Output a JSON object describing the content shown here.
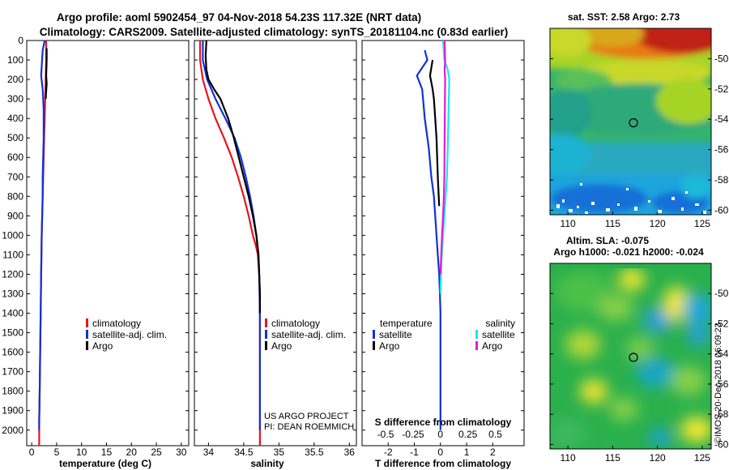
{
  "header": {
    "title_line1": "Argo profile: aoml 5902454_97 04-Nov-2018 54.23S 117.32E (NRT data)",
    "title_line2": "Climatology: CARS2009. Satellite-adjusted climatology: synTS_20181104.nc (0.83d earlier)"
  },
  "credits": {
    "project": "US ARGO PROJECT",
    "pi": "PI: DEAN ROEMMICH",
    "stamp": "©IMOS 20-Dec-2018 06:09:23"
  },
  "colors": {
    "climatology": "#e8141e",
    "satellite": "#1230d8",
    "argo": "#000000",
    "sal_satellite": "#18e8e8",
    "sal_argo": "#e818d8"
  },
  "chart_data": [
    {
      "type": "line",
      "name": "temperature",
      "xlabel": "temperature (deg C)",
      "ylabel": "",
      "xlim": [
        -1,
        31.5
      ],
      "ylim": [
        2080,
        0
      ],
      "xticks": [
        "0",
        "5",
        "10",
        "15",
        "20",
        "25",
        "30"
      ],
      "yticks": [
        "0",
        "100",
        "200",
        "300",
        "400",
        "500",
        "600",
        "700",
        "800",
        "900",
        "1000",
        "1100",
        "1200",
        "1300",
        "1400",
        "1500",
        "1600",
        "1700",
        "1800",
        "1900",
        "2000"
      ],
      "legend": [
        "climatology",
        "satellite-adj. clim.",
        "Argo"
      ],
      "series": [
        {
          "name": "climatology",
          "x": [
            2.9,
            2.9,
            2.8,
            2.7,
            2.6,
            2.5,
            2.4,
            2.3,
            2.2,
            2.1,
            2.0,
            1.9,
            1.8,
            1.7,
            1.6,
            1.5,
            1.5
          ],
          "y": [
            0,
            100,
            200,
            300,
            400,
            500,
            600,
            700,
            800,
            900,
            1000,
            1200,
            1400,
            1600,
            1800,
            1950,
            2080
          ]
        },
        {
          "name": "satellite-adj. clim.",
          "x": [
            2.6,
            2.2,
            1.9,
            2.2,
            2.4,
            2.4,
            2.3,
            2.2,
            2.2,
            2.1,
            2.0,
            1.9,
            1.8,
            1.7,
            1.6,
            1.5,
            1.5
          ],
          "y": [
            0,
            50,
            180,
            250,
            350,
            500,
            600,
            700,
            800,
            900,
            1000,
            1200,
            1400,
            1600,
            1800,
            1950,
            2000
          ]
        },
        {
          "name": "Argo",
          "x": [
            3.0,
            3.0,
            2.9,
            3.0,
            2.9,
            2.8
          ],
          "y": [
            40,
            100,
            180,
            220,
            260,
            300
          ]
        }
      ]
    },
    {
      "type": "line",
      "name": "salinity",
      "xlabel": "salinity",
      "ylabel": "",
      "xlim": [
        33.8,
        36.1
      ],
      "ylim": [
        2080,
        0
      ],
      "xticks": [
        "34",
        "34.5",
        "35",
        "35.5",
        "36"
      ],
      "legend": [
        "climatology",
        "satellite-adj. clim.",
        "Argo"
      ],
      "series": [
        {
          "name": "climatology",
          "x": [
            33.88,
            33.88,
            33.92,
            34.0,
            34.1,
            34.22,
            34.33,
            34.42,
            34.5,
            34.57,
            34.63,
            34.67,
            34.7,
            34.72,
            34.73,
            34.73,
            34.73,
            34.73,
            34.73
          ],
          "y": [
            0,
            100,
            200,
            300,
            400,
            500,
            600,
            700,
            800,
            900,
            1000,
            1050,
            1100,
            1200,
            1300,
            1500,
            1700,
            1900,
            2080
          ]
        },
        {
          "name": "satellite-adj. clim.",
          "x": [
            33.92,
            33.92,
            33.98,
            34.1,
            34.24,
            34.37,
            34.46,
            34.53,
            34.59,
            34.64,
            34.68,
            34.71,
            34.72,
            34.73,
            34.73,
            34.73,
            34.73
          ],
          "y": [
            0,
            100,
            200,
            300,
            400,
            500,
            600,
            700,
            800,
            900,
            1000,
            1100,
            1200,
            1400,
            1600,
            1800,
            2000
          ]
        },
        {
          "name": "Argo",
          "x": [
            33.97,
            33.96,
            33.97,
            34.0,
            34.08,
            34.17,
            34.28,
            34.36,
            34.43,
            34.5,
            34.57,
            34.63,
            34.68,
            34.71,
            34.72,
            34.73,
            34.73
          ],
          "y": [
            0,
            80,
            150,
            200,
            250,
            300,
            400,
            500,
            600,
            700,
            800,
            900,
            1000,
            1100,
            1200,
            1300,
            1400
          ]
        }
      ]
    },
    {
      "type": "line",
      "name": "difference",
      "xlabel": "T difference from climatology",
      "xlabel2": "S difference from climatology",
      "xlim": [
        -3,
        3.2
      ],
      "ylim": [
        2080,
        0
      ],
      "xticks": [
        "-2",
        "-1",
        "0",
        "1",
        "2"
      ],
      "xticks2": [
        "-0.5",
        "-0.25",
        "0",
        "0.25",
        "0.5"
      ],
      "legend_temperature_title": "temperature",
      "legend_salinity_title": "salinity",
      "legend_temperature": [
        "satellite",
        "Argo"
      ],
      "legend_salinity": [
        "satellite",
        "Argo"
      ],
      "series": [
        {
          "name": "T satellite",
          "x": [
            -0.6,
            -0.5,
            -0.9,
            -0.7,
            -0.6,
            -0.45,
            -0.35,
            -0.25,
            -0.2,
            -0.15,
            -0.1,
            -0.05,
            -0.02,
            0,
            0,
            0,
            0,
            0
          ],
          "y": [
            50,
            100,
            180,
            250,
            400,
            550,
            700,
            800,
            900,
            1000,
            1100,
            1200,
            1300,
            1400,
            1600,
            1800,
            1950,
            2000
          ]
        },
        {
          "name": "T Argo",
          "x": [
            -0.3,
            -0.4,
            -0.3,
            -0.25,
            -0.15,
            -0.1,
            -0.05
          ],
          "y": [
            100,
            180,
            250,
            300,
            500,
            700,
            850
          ]
        },
        {
          "name": "S satellite",
          "x": [
            0.1,
            0.15,
            0.28,
            0.34,
            0.32,
            0.29,
            0.25,
            0.2,
            0.15,
            0.1,
            0.05,
            0.02,
            0
          ],
          "y": [
            0,
            100,
            150,
            200,
            300,
            500,
            700,
            800,
            900,
            1000,
            1100,
            1200,
            1300
          ]
        },
        {
          "name": "S Argo",
          "x": [
            0.16,
            0.18,
            0.16,
            0.18,
            0.17,
            0.16,
            0.15,
            0.13,
            0.1,
            0.06,
            0.03,
            0
          ],
          "y": [
            0,
            100,
            150,
            200,
            300,
            500,
            700,
            800,
            900,
            1000,
            1100,
            1200
          ]
        }
      ]
    },
    {
      "type": "heatmap",
      "name": "satellite SST map",
      "title": "sat. SST: 2.58 Argo: 2.73",
      "xlim": [
        108,
        126
      ],
      "ylim": [
        -60.3,
        -48
      ],
      "xticks": [
        "110",
        "115",
        "120",
        "125"
      ],
      "yticks": [
        "-50",
        "-52",
        "-54",
        "-56",
        "-58",
        "-60"
      ],
      "marker": {
        "lon": 117.32,
        "lat": -54.23
      }
    },
    {
      "type": "heatmap",
      "name": "altimetry SLA map",
      "title_line1": "Altim. SLA: -0.075",
      "title_line2": "Argo h1000: -0.021 h2000: -0.024",
      "xlim": [
        108,
        126
      ],
      "ylim": [
        -60.3,
        -48
      ],
      "xticks": [
        "110",
        "115",
        "120",
        "125"
      ],
      "yticks": [
        "-50",
        "-52",
        "-54",
        "-56",
        "-58",
        "-60"
      ],
      "marker": {
        "lon": 117.32,
        "lat": -54.23
      }
    }
  ]
}
